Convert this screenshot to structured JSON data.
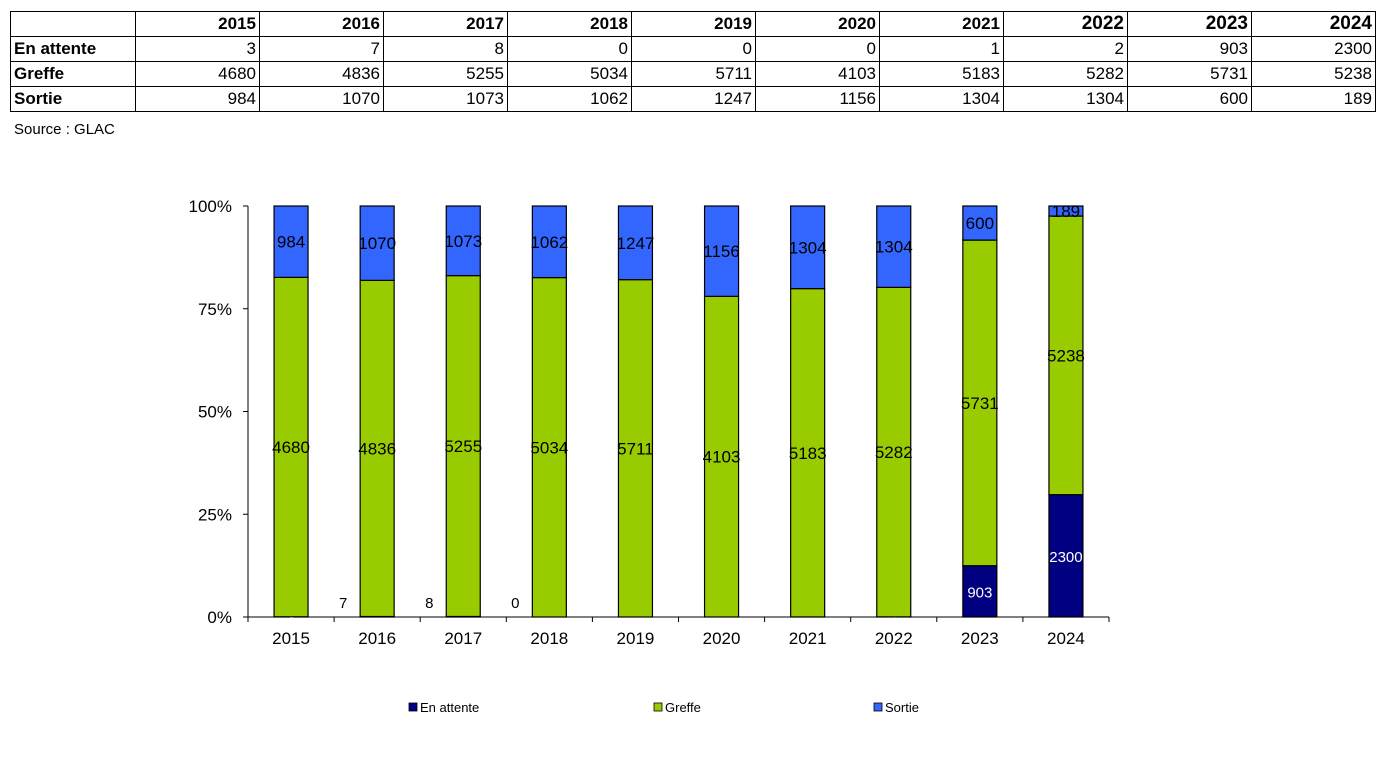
{
  "table": {
    "years": [
      "2015",
      "2016",
      "2017",
      "2018",
      "2019",
      "2020",
      "2021",
      "2022",
      "2023",
      "2024"
    ],
    "rows": [
      {
        "label": "En attente",
        "values": [
          "3",
          "7",
          "8",
          "0",
          "0",
          "0",
          "1",
          "2",
          "903",
          "2300"
        ]
      },
      {
        "label": "Greffe",
        "values": [
          "4680",
          "4836",
          "5255",
          "5034",
          "5711",
          "4103",
          "5183",
          "5282",
          "5731",
          "5238"
        ]
      },
      {
        "label": "Sortie",
        "values": [
          "984",
          "1070",
          "1073",
          "1062",
          "1247",
          "1156",
          "1304",
          "1304",
          "600",
          "189"
        ]
      }
    ]
  },
  "source": "Source : GLAC",
  "chart_data": {
    "type": "bar",
    "stacked": "percent",
    "categories": [
      "2015",
      "2016",
      "2017",
      "2018",
      "2019",
      "2020",
      "2021",
      "2022",
      "2023",
      "2024"
    ],
    "series": [
      {
        "name": "En attente",
        "color": "#000080",
        "values": [
          3,
          7,
          8,
          0,
          0,
          0,
          1,
          2,
          903,
          2300
        ]
      },
      {
        "name": "Greffe",
        "color": "#99CC00",
        "values": [
          4680,
          4836,
          5255,
          5034,
          5711,
          4103,
          5183,
          5282,
          5731,
          5238
        ]
      },
      {
        "name": "Sortie",
        "color": "#3366FF",
        "values": [
          984,
          1070,
          1073,
          1062,
          1247,
          1156,
          1304,
          1304,
          600,
          189
        ]
      }
    ],
    "yticks": [
      "0%",
      "25%",
      "50%",
      "75%",
      "100%"
    ],
    "ylim": [
      0,
      100
    ],
    "legend_position": "bottom"
  }
}
